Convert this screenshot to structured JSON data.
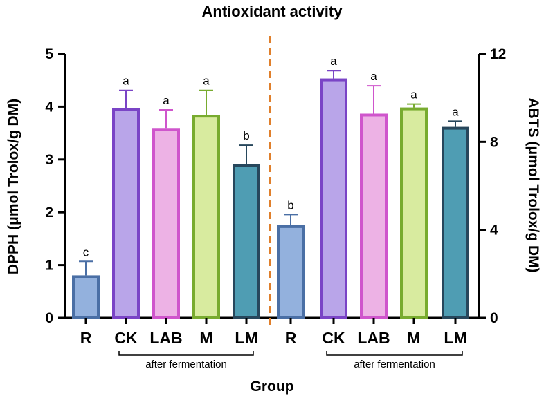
{
  "chart_data": {
    "type": "bar",
    "title": "Antioxidant activity",
    "xlabel": "Group",
    "groups": [
      {
        "axis": "left",
        "ylabel": "DPPH (μmol Trolox/g DM)",
        "ylim": [
          0,
          5
        ],
        "yticks": [
          0,
          1,
          2,
          3,
          4,
          5
        ],
        "categories": [
          "R",
          "CK",
          "LAB",
          "M",
          "LM"
        ],
        "values": [
          0.78,
          3.95,
          3.57,
          3.82,
          2.88
        ],
        "errors": [
          0.29,
          0.36,
          0.37,
          0.49,
          0.39
        ],
        "letters": [
          "c",
          "a",
          "a",
          "a",
          "b"
        ],
        "annotation": "after fermentation"
      },
      {
        "axis": "right",
        "ylabel": "ABTS (μmol Trolox/g DM)",
        "ylim": [
          0,
          12
        ],
        "yticks": [
          0,
          4,
          8,
          12
        ],
        "categories": [
          "R",
          "CK",
          "LAB",
          "M",
          "LM"
        ],
        "values": [
          4.15,
          10.82,
          9.22,
          9.5,
          8.62
        ],
        "errors": [
          0.55,
          0.42,
          1.33,
          0.22,
          0.32
        ],
        "letters": [
          "b",
          "a",
          "a",
          "a",
          "a"
        ],
        "annotation": "after fermentation"
      }
    ],
    "colors": {
      "fill": [
        "#93b1dd",
        "#b9a5e9",
        "#edb2e5",
        "#d8eb9f",
        "#4f9db3"
      ],
      "stroke": [
        "#4a6fa5",
        "#7a44c6",
        "#cf55cc",
        "#78ab2f",
        "#27475c"
      ],
      "divider": "#e07f2b"
    },
    "grid": false,
    "legend": "none"
  }
}
